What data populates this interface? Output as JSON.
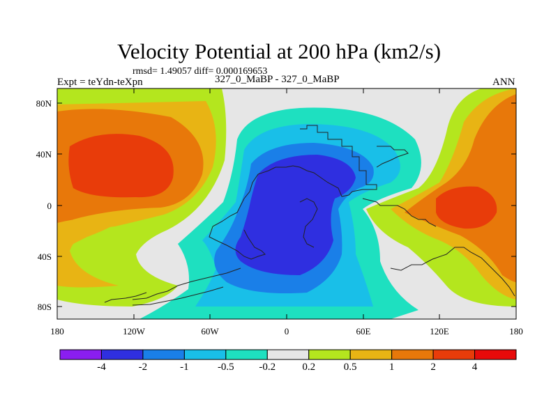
{
  "figure": {
    "title": "Velocity Potential at 200 hPa (km2/s)",
    "stats": "rmsd= 1.49057 diff= 0.000169653",
    "left_label": "Expt = teYdn-teXpn",
    "center_label": "327_0_MaBP - 327_0_MaBP",
    "right_label": "ANN"
  },
  "axes": {
    "lat_labels": [
      "80N",
      "40N",
      "0",
      "40S",
      "80S"
    ],
    "lon_labels": [
      "180",
      "120W",
      "60W",
      "0",
      "60E",
      "120E",
      "180"
    ]
  },
  "colorbar": {
    "labels": [
      "-4",
      "-2",
      "-1",
      "-0.5",
      "-0.2",
      "0.2",
      "0.5",
      "1",
      "2",
      "4"
    ],
    "colors": [
      "#8a1ef0",
      "#2f2fe0",
      "#1a7fe8",
      "#19bfe8",
      "#1ee0c0",
      "#e6e6e6",
      "#b4e61e",
      "#e8b414",
      "#e8780a",
      "#e83c0a",
      "#e80a0a"
    ]
  }
}
